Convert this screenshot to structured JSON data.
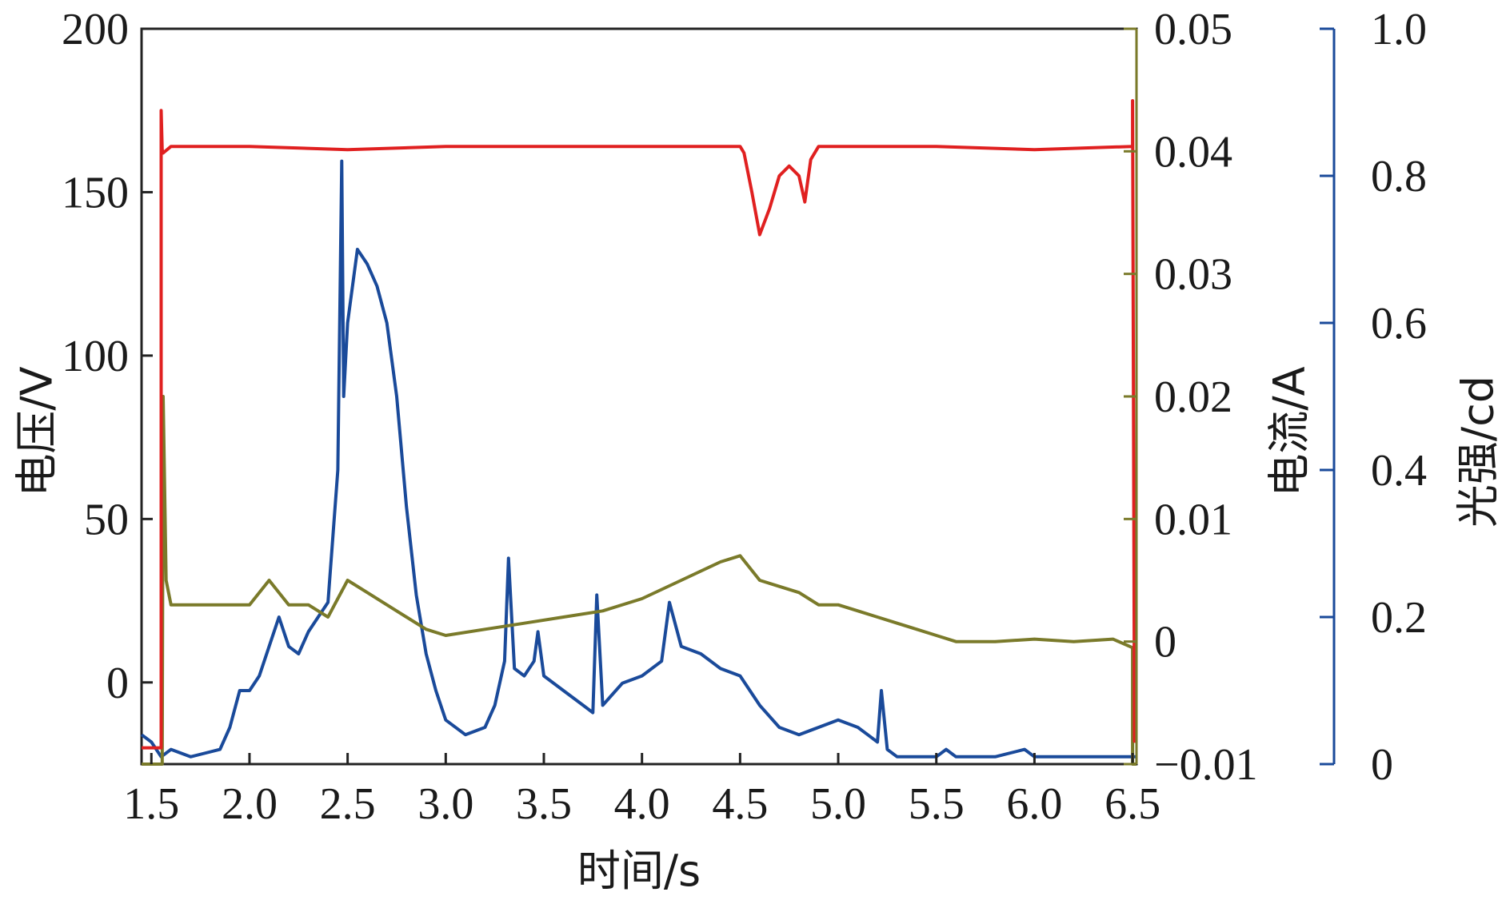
{
  "chart_data": {
    "type": "line",
    "xlabel": "时间/s",
    "x_ticks": [
      "1.5",
      "2.0",
      "2.5",
      "3.0",
      "3.5",
      "4.0",
      "4.5",
      "5.0",
      "5.5",
      "6.0",
      "6.5"
    ],
    "xlim": [
      1.45,
      6.52
    ],
    "grid": false,
    "legend": "none",
    "axes": [
      {
        "id": "voltage",
        "label": "电压/V",
        "position": "left",
        "ylim": [
          -25,
          200
        ],
        "ticks": [
          "200",
          "150",
          "100",
          "50",
          "0"
        ],
        "color": "#222222"
      },
      {
        "id": "current",
        "label": "电流/A",
        "position": "right",
        "ylim": [
          -0.01,
          0.05
        ],
        "ticks": [
          "0.05",
          "0.04",
          "0.03",
          "0.02",
          "0.01",
          "0",
          "−0.01"
        ],
        "color": "#7a7a2a"
      },
      {
        "id": "intensity",
        "label": "光强/cd",
        "position": "right-outer",
        "ylim": [
          0,
          1.0
        ],
        "ticks": [
          "1.0",
          "0.8",
          "0.6",
          "0.4",
          "0.2",
          "0"
        ],
        "color": "#1a4a9a"
      }
    ],
    "series": [
      {
        "axis": "voltage",
        "color": "#e02020",
        "x": [
          1.45,
          1.55,
          1.55,
          1.555,
          1.56,
          1.6,
          2.0,
          2.5,
          3.0,
          3.5,
          4.0,
          4.5,
          4.52,
          4.56,
          4.6,
          4.65,
          4.7,
          4.75,
          4.8,
          4.83,
          4.86,
          4.9,
          5.0,
          5.5,
          6.0,
          6.5,
          6.5,
          6.51,
          6.52
        ],
        "y": [
          -20,
          -20,
          175,
          163,
          162,
          164,
          164,
          163,
          164,
          164,
          164,
          164,
          162,
          150,
          137,
          145,
          155,
          158,
          155,
          147,
          160,
          164,
          164,
          164,
          163,
          164,
          178,
          -18,
          -18
        ]
      },
      {
        "axis": "current",
        "color": "#7a7a2a",
        "x": [
          1.45,
          1.555,
          1.56,
          1.575,
          1.6,
          1.65,
          1.8,
          2.0,
          2.1,
          2.2,
          2.3,
          2.4,
          2.5,
          2.6,
          2.7,
          2.8,
          2.9,
          3.0,
          3.2,
          3.4,
          3.6,
          3.8,
          4.0,
          4.2,
          4.4,
          4.5,
          4.6,
          4.7,
          4.8,
          4.9,
          5.0,
          5.1,
          5.2,
          5.3,
          5.4,
          5.5,
          5.6,
          5.8,
          6.0,
          6.2,
          6.4,
          6.5,
          6.5,
          6.52
        ],
        "y": [
          -0.01,
          -0.01,
          0.02,
          0.005,
          0.003,
          0.003,
          0.003,
          0.003,
          0.005,
          0.003,
          0.003,
          0.002,
          0.005,
          0.004,
          0.003,
          0.002,
          0.001,
          0.0005,
          0.001,
          0.0015,
          0.002,
          0.0025,
          0.0035,
          0.005,
          0.0065,
          0.007,
          0.005,
          0.0045,
          0.004,
          0.003,
          0.003,
          0.0025,
          0.002,
          0.0015,
          0.001,
          0.0005,
          0.0,
          0.0,
          0.0002,
          0.0,
          0.0002,
          -0.0005,
          -0.01,
          -0.01
        ]
      },
      {
        "axis": "intensity",
        "color": "#1a4a9a",
        "x": [
          1.45,
          1.5,
          1.55,
          1.6,
          1.7,
          1.85,
          1.9,
          1.95,
          2.0,
          2.05,
          2.1,
          2.15,
          2.2,
          2.25,
          2.3,
          2.35,
          2.4,
          2.45,
          2.47,
          2.48,
          2.5,
          2.55,
          2.6,
          2.65,
          2.7,
          2.75,
          2.8,
          2.85,
          2.9,
          2.95,
          3.0,
          3.1,
          3.2,
          3.25,
          3.3,
          3.32,
          3.35,
          3.4,
          3.45,
          3.47,
          3.5,
          3.6,
          3.7,
          3.75,
          3.77,
          3.8,
          3.9,
          4.0,
          4.1,
          4.14,
          4.2,
          4.3,
          4.4,
          4.5,
          4.6,
          4.7,
          4.8,
          4.9,
          5.0,
          5.1,
          5.15,
          5.2,
          5.22,
          5.25,
          5.3,
          5.5,
          5.55,
          5.6,
          5.8,
          5.95,
          6.0,
          6.2,
          6.4,
          6.52
        ],
        "y": [
          0.04,
          0.03,
          0.01,
          0.02,
          0.01,
          0.02,
          0.05,
          0.1,
          0.1,
          0.12,
          0.16,
          0.2,
          0.16,
          0.15,
          0.18,
          0.2,
          0.22,
          0.4,
          0.82,
          0.5,
          0.6,
          0.7,
          0.68,
          0.65,
          0.6,
          0.5,
          0.35,
          0.23,
          0.15,
          0.1,
          0.06,
          0.04,
          0.05,
          0.08,
          0.14,
          0.28,
          0.13,
          0.12,
          0.14,
          0.18,
          0.12,
          0.1,
          0.08,
          0.07,
          0.23,
          0.08,
          0.11,
          0.12,
          0.14,
          0.22,
          0.16,
          0.15,
          0.13,
          0.12,
          0.08,
          0.05,
          0.04,
          0.05,
          0.06,
          0.05,
          0.04,
          0.03,
          0.1,
          0.02,
          0.01,
          0.01,
          0.02,
          0.01,
          0.01,
          0.02,
          0.01,
          0.01,
          0.01,
          0.01
        ]
      }
    ]
  }
}
